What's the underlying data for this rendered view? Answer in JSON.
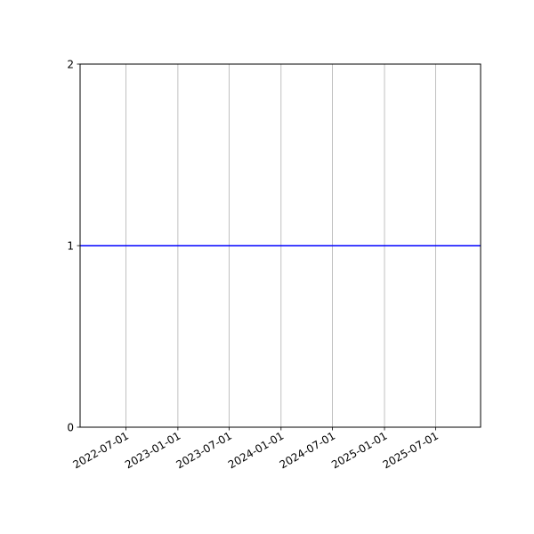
{
  "chart_data": {
    "type": "line",
    "title": "",
    "xlabel": "",
    "ylabel": "",
    "x_axis_type": "date",
    "xlim": [
      "2022-01-20",
      "2025-12-07"
    ],
    "ylim": [
      0,
      2
    ],
    "x_ticks": [
      "2022-07-01",
      "2023-01-01",
      "2023-07-01",
      "2024-01-01",
      "2024-07-01",
      "2025-01-01",
      "2025-07-01"
    ],
    "y_ticks": [
      "0",
      "1",
      "2"
    ],
    "grid": "vertical (x) only",
    "series": [
      {
        "x": [
          "2022-01-20",
          "2025-12-07"
        ],
        "y": [
          1,
          1
        ],
        "color": "#0000ff"
      }
    ],
    "grid_color": "#b0b0b0"
  }
}
